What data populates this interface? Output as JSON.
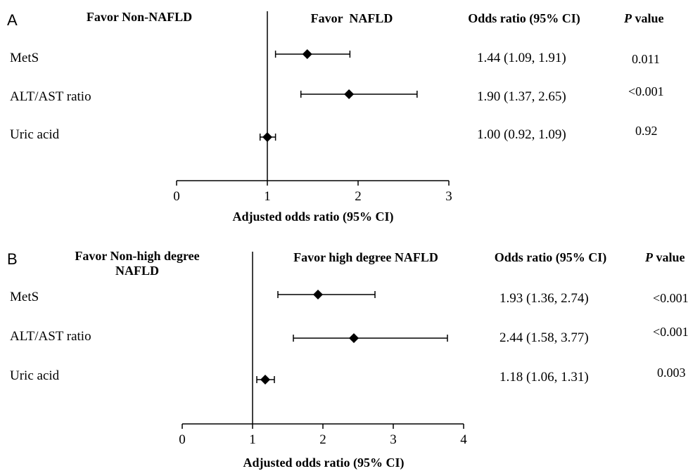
{
  "chart_data": [
    {
      "type": "forest",
      "panel_label": "A",
      "left_header": "Favor Non-NAFLD",
      "right_header": "Favor  NAFLD",
      "or_header": "Odds ratio (95% CI)",
      "p_header_italic": "P",
      "p_header_rest": " value",
      "xlabel": "Adjusted odds ratio (95% CI)",
      "xlim": [
        0,
        3
      ],
      "xticks": [
        "0",
        "1",
        "2",
        "3"
      ],
      "reference_line": 1,
      "rows": [
        {
          "label": "MetS",
          "or": 1.44,
          "lo": 1.09,
          "hi": 1.91,
          "or_text": "1.44 (1.09, 1.91)",
          "p": "0.011"
        },
        {
          "label": "ALT/AST ratio",
          "or": 1.9,
          "lo": 1.37,
          "hi": 2.65,
          "or_text": "1.90 (1.37, 2.65)",
          "p": "<0.001"
        },
        {
          "label": "Uric acid",
          "or": 1.0,
          "lo": 0.92,
          "hi": 1.09,
          "or_text": "1.00 (0.92, 1.09)",
          "p": "0.92"
        }
      ]
    },
    {
      "type": "forest",
      "panel_label": "B",
      "left_header": "Favor Non-high degree NAFLD",
      "right_header": "Favor high degree NAFLD",
      "or_header": "Odds ratio (95% CI)",
      "p_header_italic": "P",
      "p_header_rest": " value",
      "xlabel": "Adjusted odds ratio (95% CI)",
      "xlim": [
        0,
        4
      ],
      "xticks": [
        "0",
        "1",
        "2",
        "3",
        "4"
      ],
      "reference_line": 1,
      "rows": [
        {
          "label": "MetS",
          "or": 1.93,
          "lo": 1.36,
          "hi": 2.74,
          "or_text": "1.93 (1.36, 2.74)",
          "p": "<0.001"
        },
        {
          "label": "ALT/AST ratio",
          "or": 2.44,
          "lo": 1.58,
          "hi": 3.77,
          "or_text": "2.44 (1.58, 3.77)",
          "p": "<0.001"
        },
        {
          "label": "Uric acid",
          "or": 1.18,
          "lo": 1.06,
          "hi": 1.31,
          "or_text": "1.18 (1.06, 1.31)",
          "p": "0.003"
        }
      ]
    }
  ]
}
